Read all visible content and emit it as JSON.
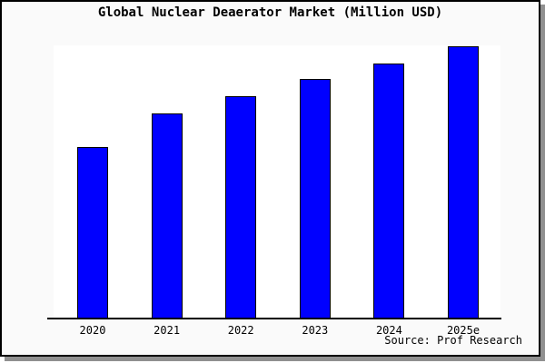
{
  "panel": {
    "background_color": "#fafafa",
    "border_color": "#000000",
    "shadow_color": "#909090"
  },
  "chart_data": {
    "type": "bar",
    "title": "Global Nuclear Deaerator Market (Million USD)",
    "categories": [
      "2020",
      "2021",
      "2022",
      "2023",
      "2024",
      "2025e"
    ],
    "values": [
      63,
      75.3,
      81.7,
      88,
      93.7,
      100
    ],
    "values_note": "y-axis is unlabeled; values are relative magnitudes indexed to 2025e = 100, estimated from bar heights",
    "ylim": [
      0,
      100.3
    ],
    "xlabel": "",
    "ylabel": "",
    "grid": false,
    "legend": false,
    "bar_color": "#0000ff",
    "bar_border_color": "#000000",
    "plot_background": "#ffffff",
    "source": "Source: Prof Research"
  }
}
